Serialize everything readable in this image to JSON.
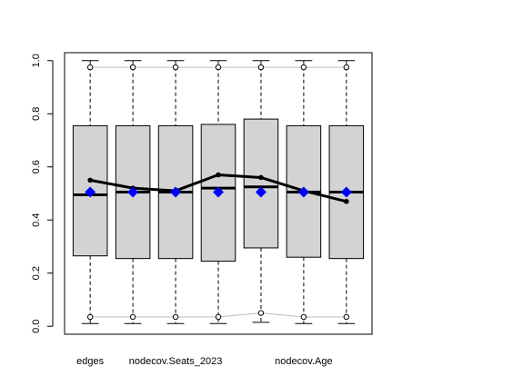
{
  "chart_data": {
    "type": "boxplot",
    "categories": [
      "edges",
      "",
      "nodecov.Seats_2023",
      "",
      "",
      "nodecov.Age",
      ""
    ],
    "ylim": [
      -0.03,
      1.03
    ],
    "yticks": [
      0.0,
      0.2,
      0.4,
      0.6,
      0.8,
      1.0
    ],
    "ytick_labels": [
      "0.0",
      "0.2",
      "0.4",
      "0.6",
      "0.8",
      "1.0"
    ],
    "boxes": [
      {
        "whisker_low": 0.01,
        "q1": 0.265,
        "median": 0.495,
        "q3": 0.755,
        "whisker_high": 1.0
      },
      {
        "whisker_low": 0.01,
        "q1": 0.255,
        "median": 0.505,
        "q3": 0.755,
        "whisker_high": 1.0
      },
      {
        "whisker_low": 0.01,
        "q1": 0.255,
        "median": 0.505,
        "q3": 0.755,
        "whisker_high": 1.0
      },
      {
        "whisker_low": 0.01,
        "q1": 0.245,
        "median": 0.52,
        "q3": 0.76,
        "whisker_high": 1.0
      },
      {
        "whisker_low": 0.015,
        "q1": 0.295,
        "median": 0.525,
        "q3": 0.78,
        "whisker_high": 1.0
      },
      {
        "whisker_low": 0.01,
        "q1": 0.26,
        "median": 0.505,
        "q3": 0.755,
        "whisker_high": 1.0
      },
      {
        "whisker_low": 0.01,
        "q1": 0.255,
        "median": 0.505,
        "q3": 0.755,
        "whisker_high": 1.0
      }
    ],
    "upper_circles": [
      0.975,
      0.975,
      0.975,
      0.975,
      0.975,
      0.975,
      0.975
    ],
    "lower_circles": [
      0.035,
      0.035,
      0.035,
      0.035,
      0.05,
      0.035,
      0.035
    ],
    "observed_line": [
      0.55,
      0.52,
      0.51,
      0.57,
      0.56,
      0.51,
      0.47
    ],
    "diamond_points": [
      0.505,
      0.505,
      0.505,
      0.505,
      0.505,
      0.505,
      0.505
    ],
    "colors": {
      "box_fill": "#d3d3d3",
      "diamond": "#0000ff",
      "gray_line": "#bebebe",
      "observed_line": "#000000"
    }
  }
}
